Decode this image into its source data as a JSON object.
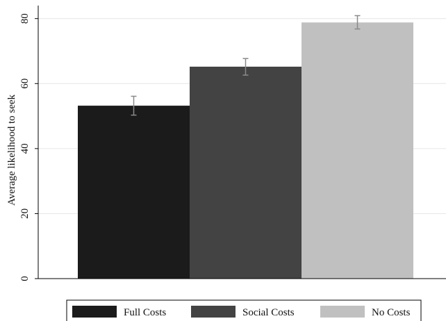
{
  "chart_data": {
    "type": "bar",
    "title": "",
    "xlabel": "",
    "ylabel": "Average likelihood to seek",
    "ylim": [
      0,
      84
    ],
    "yticks": [
      0,
      20,
      40,
      60,
      80
    ],
    "grid": true,
    "legend_position": "bottom",
    "series": [
      {
        "name": "Full Costs",
        "value": 53.2,
        "ci_low": 50.3,
        "ci_high": 56.1,
        "color": "#1b1b1b"
      },
      {
        "name": "Social Costs",
        "value": 65.2,
        "ci_low": 62.6,
        "ci_high": 67.7,
        "color": "#434343"
      },
      {
        "name": "No Costs",
        "value": 78.8,
        "ci_low": 76.8,
        "ci_high": 80.9,
        "color": "#c0c0c0"
      }
    ]
  }
}
